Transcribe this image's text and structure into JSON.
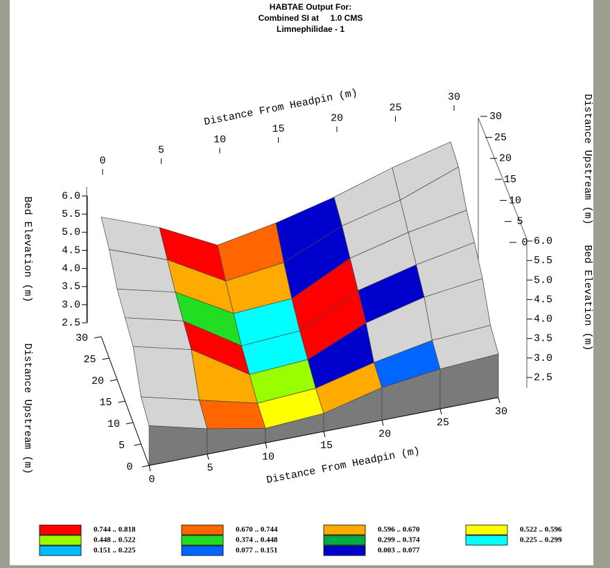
{
  "chart_data": {
    "type": "surface3d",
    "title": [
      "HABTAE Output For:",
      "Combined SI at     1.0 CMS",
      "Limnephilidae - 1"
    ],
    "x_label": "Distance From Headpin (m)",
    "y_label": "Distance Upstream (m)",
    "z_label": "Bed Elevation (m)",
    "x": [
      0,
      5,
      10,
      15,
      20,
      25,
      30
    ],
    "y": [
      0,
      5,
      10,
      15,
      20,
      25,
      30
    ],
    "z": [
      [
        3.6,
        3.2,
        2.9,
        3.0,
        3.4,
        3.6,
        3.7
      ],
      [
        3.8,
        3.4,
        3.0,
        3.1,
        3.5,
        3.8,
        3.9
      ],
      [
        4.6,
        4.2,
        3.2,
        3.3,
        4.0,
        4.4,
        4.6
      ],
      [
        4.8,
        4.4,
        3.4,
        3.5,
        4.3,
        4.7,
        5.0
      ],
      [
        5.0,
        4.6,
        3.7,
        3.8,
        4.6,
        5.0,
        5.3
      ],
      [
        5.5,
        4.9,
        4.0,
        4.2,
        4.9,
        5.3,
        5.9
      ],
      [
        5.8,
        5.2,
        4.4,
        4.7,
        5.1,
        5.6,
        6.0
      ]
    ],
    "si": [
      [
        null,
        0.7,
        0.55,
        0.65,
        0.1,
        null
      ],
      [
        null,
        0.62,
        0.5,
        0.02,
        null,
        null
      ],
      [
        null,
        0.78,
        0.26,
        0.8,
        0.05,
        null
      ],
      [
        null,
        0.4,
        0.27,
        0.79,
        null,
        null
      ],
      [
        null,
        0.63,
        0.6,
        0.05,
        null,
        null
      ],
      [
        null,
        0.75,
        0.68,
        0.02,
        null,
        null
      ]
    ],
    "dry_color": "#d4d4d4",
    "wall_color": "#7a7a7a",
    "xlim": [
      0,
      30
    ],
    "ylim": [
      0,
      30
    ],
    "zlim": [
      2.5,
      6.0
    ],
    "xticks": [
      0,
      5,
      10,
      15,
      20,
      25,
      30
    ],
    "yticks": [
      0,
      5,
      10,
      15,
      20,
      25,
      30
    ],
    "zticks": [
      2.5,
      {
        "value": 3,
        "label": "3.0"
      },
      3.5,
      {
        "value": 4,
        "label": "4.0"
      },
      4.5,
      {
        "value": 5,
        "label": "5.0"
      },
      5.5,
      {
        "value": 6,
        "label": "6.0"
      }
    ],
    "legend": [
      {
        "min": 0.744,
        "max": 0.818,
        "label": "0.744 .. 0.818",
        "color": "#ff0000"
      },
      {
        "min": 0.67,
        "max": 0.744,
        "label": "0.670 .. 0.744",
        "color": "#ff6600"
      },
      {
        "min": 0.596,
        "max": 0.67,
        "label": "0.596 .. 0.670",
        "color": "#ffaa00"
      },
      {
        "min": 0.522,
        "max": 0.596,
        "label": "0.522 .. 0.596",
        "color": "#ffff00"
      },
      {
        "min": 0.448,
        "max": 0.522,
        "label": "0.448 .. 0.522",
        "color": "#99ff00"
      },
      {
        "min": 0.374,
        "max": 0.448,
        "label": "0.374 .. 0.448",
        "color": "#22dd22"
      },
      {
        "min": 0.299,
        "max": 0.374,
        "label": "0.299 .. 0.374",
        "color": "#00aa44"
      },
      {
        "min": 0.225,
        "max": 0.299,
        "label": "0.225 .. 0.299",
        "color": "#00ffff"
      },
      {
        "min": 0.151,
        "max": 0.225,
        "label": "0.151 .. 0.225",
        "color": "#00bbff"
      },
      {
        "min": 0.077,
        "max": 0.151,
        "label": "0.077 .. 0.151",
        "color": "#0066ff"
      },
      {
        "min": 0.003,
        "max": 0.077,
        "label": "0.003 .. 0.077",
        "color": "#0000cc"
      }
    ]
  }
}
